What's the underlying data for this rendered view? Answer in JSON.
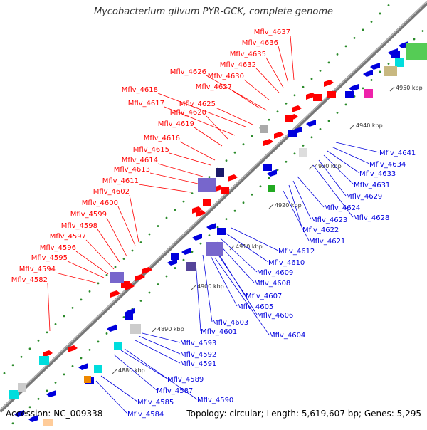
{
  "title": "Mycobacterium gilvum PYR-GCK, complete genome",
  "footer": {
    "accession": "Accession: NC_009338",
    "topology": "Topology: circular; Length: 5,619,607 bp; Genes: 5,295"
  },
  "colors": {
    "forward_gene": "#ff0000",
    "reverse_gene": "#0000dd",
    "backbone": "#888888",
    "tick_dot": "#2a8a2a"
  },
  "scale_ticks": [
    "4880 kbp",
    "4890 kbp",
    "4900 kbp",
    "4910 kbp",
    "4920 kbp",
    "4930 kbp",
    "4940 kbp",
    "4950 kbp"
  ],
  "forward_labels": [
    "Mflv_4637",
    "Mflv_4636",
    "Mflv_4635",
    "Mflv_4632",
    "Mflv_4626",
    "Mflv_4630",
    "Mflv_4627",
    "Mflv_4618",
    "Mflv_4625",
    "Mflv_4617",
    "Mflv_4620",
    "Mflv_4619",
    "Mflv_4616",
    "Mflv_4615",
    "Mflv_4614",
    "Mflv_4613",
    "Mflv_4611",
    "Mflv_4602",
    "Mflv_4600",
    "Mflv_4599",
    "Mflv_4598",
    "Mflv_4597",
    "Mflv_4596",
    "Mflv_4595",
    "Mflv_4594",
    "Mflv_4582"
  ],
  "reverse_labels": [
    "Mflv_4641",
    "Mflv_4634",
    "Mflv_4633",
    "Mflv_4631",
    "Mflv_4629",
    "Mflv_4628",
    "Mflv_4624",
    "Mflv_4623",
    "Mflv_4622",
    "Mflv_4621",
    "Mflv_4612",
    "Mflv_4610",
    "Mflv_4609",
    "Mflv_4608",
    "Mflv_4607",
    "Mflv_4605",
    "Mflv_4606",
    "Mflv_4603",
    "Mflv_4601",
    "Mflv_4604",
    "Mflv_4593",
    "Mflv_4592",
    "Mflv_4591",
    "Mflv_4589",
    "Mflv_4587",
    "Mflv_4590",
    "Mflv_4585",
    "Mflv_4584"
  ]
}
